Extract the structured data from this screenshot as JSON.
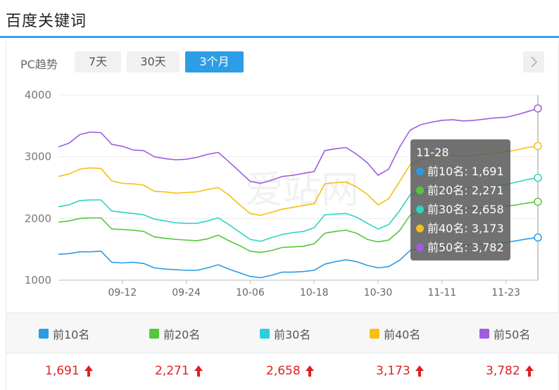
{
  "header": {
    "title": "百度关键词"
  },
  "toolbar": {
    "label": "PC趋势",
    "tabs": [
      {
        "label": "7天",
        "active": false
      },
      {
        "label": "30天",
        "active": false
      },
      {
        "label": "3个月",
        "active": true
      }
    ],
    "next_icon": "chevron-right-icon"
  },
  "watermark": "爱站网",
  "chart_data": {
    "type": "line",
    "ylim": [
      1000,
      4000
    ],
    "yticks": [
      "1000",
      "2000",
      "3000",
      "4000"
    ],
    "xticks": [
      "09-12",
      "09-24",
      "10-06",
      "10-18",
      "10-30",
      "11-11",
      "11-23"
    ],
    "x_range_days": [
      0,
      90
    ],
    "xtick_days": [
      12,
      24,
      36,
      48,
      60,
      72,
      84
    ],
    "grid": true,
    "series": [
      {
        "name": "前10名",
        "color": "#2b9be3",
        "points": [
          [
            0,
            1420
          ],
          [
            2,
            1430
          ],
          [
            4,
            1460
          ],
          [
            6,
            1460
          ],
          [
            8,
            1470
          ],
          [
            10,
            1290
          ],
          [
            12,
            1280
          ],
          [
            14,
            1290
          ],
          [
            16,
            1270
          ],
          [
            18,
            1200
          ],
          [
            20,
            1180
          ],
          [
            22,
            1170
          ],
          [
            24,
            1160
          ],
          [
            26,
            1160
          ],
          [
            28,
            1200
          ],
          [
            30,
            1250
          ],
          [
            32,
            1180
          ],
          [
            34,
            1120
          ],
          [
            36,
            1060
          ],
          [
            38,
            1040
          ],
          [
            40,
            1080
          ],
          [
            42,
            1130
          ],
          [
            44,
            1130
          ],
          [
            46,
            1140
          ],
          [
            48,
            1160
          ],
          [
            50,
            1260
          ],
          [
            52,
            1300
          ],
          [
            54,
            1330
          ],
          [
            56,
            1300
          ],
          [
            58,
            1240
          ],
          [
            60,
            1200
          ],
          [
            62,
            1220
          ],
          [
            64,
            1320
          ],
          [
            66,
            1480
          ],
          [
            68,
            1520
          ],
          [
            70,
            1540
          ],
          [
            72,
            1560
          ],
          [
            74,
            1580
          ],
          [
            76,
            1570
          ],
          [
            78,
            1580
          ],
          [
            80,
            1590
          ],
          [
            82,
            1600
          ],
          [
            84,
            1610
          ],
          [
            86,
            1640
          ],
          [
            88,
            1670
          ],
          [
            90,
            1691
          ]
        ]
      },
      {
        "name": "前20名",
        "color": "#54c73a",
        "points": [
          [
            0,
            1940
          ],
          [
            2,
            1960
          ],
          [
            4,
            2000
          ],
          [
            6,
            2010
          ],
          [
            8,
            2010
          ],
          [
            10,
            1830
          ],
          [
            12,
            1820
          ],
          [
            14,
            1810
          ],
          [
            16,
            1790
          ],
          [
            18,
            1700
          ],
          [
            20,
            1680
          ],
          [
            22,
            1660
          ],
          [
            24,
            1650
          ],
          [
            26,
            1640
          ],
          [
            28,
            1670
          ],
          [
            30,
            1730
          ],
          [
            32,
            1640
          ],
          [
            34,
            1560
          ],
          [
            36,
            1470
          ],
          [
            38,
            1450
          ],
          [
            40,
            1480
          ],
          [
            42,
            1530
          ],
          [
            44,
            1540
          ],
          [
            46,
            1550
          ],
          [
            48,
            1590
          ],
          [
            50,
            1760
          ],
          [
            52,
            1790
          ],
          [
            54,
            1810
          ],
          [
            56,
            1760
          ],
          [
            58,
            1660
          ],
          [
            60,
            1620
          ],
          [
            62,
            1650
          ],
          [
            64,
            1800
          ],
          [
            66,
            2050
          ],
          [
            68,
            2120
          ],
          [
            70,
            2150
          ],
          [
            72,
            2170
          ],
          [
            74,
            2180
          ],
          [
            76,
            2160
          ],
          [
            78,
            2170
          ],
          [
            80,
            2180
          ],
          [
            82,
            2190
          ],
          [
            84,
            2200
          ],
          [
            86,
            2220
          ],
          [
            88,
            2250
          ],
          [
            90,
            2271
          ]
        ]
      },
      {
        "name": "前30名",
        "color": "#2ed3c1",
        "points": [
          [
            0,
            2190
          ],
          [
            2,
            2220
          ],
          [
            4,
            2290
          ],
          [
            6,
            2300
          ],
          [
            8,
            2300
          ],
          [
            10,
            2120
          ],
          [
            12,
            2100
          ],
          [
            14,
            2080
          ],
          [
            16,
            2060
          ],
          [
            18,
            1990
          ],
          [
            20,
            1960
          ],
          [
            22,
            1930
          ],
          [
            24,
            1920
          ],
          [
            26,
            1920
          ],
          [
            28,
            1960
          ],
          [
            30,
            2010
          ],
          [
            32,
            1900
          ],
          [
            34,
            1780
          ],
          [
            36,
            1660
          ],
          [
            38,
            1630
          ],
          [
            40,
            1690
          ],
          [
            42,
            1740
          ],
          [
            44,
            1770
          ],
          [
            46,
            1790
          ],
          [
            48,
            1850
          ],
          [
            50,
            2060
          ],
          [
            52,
            2070
          ],
          [
            54,
            2080
          ],
          [
            56,
            2020
          ],
          [
            58,
            1920
          ],
          [
            60,
            1830
          ],
          [
            62,
            1900
          ],
          [
            64,
            2120
          ],
          [
            66,
            2380
          ],
          [
            68,
            2450
          ],
          [
            70,
            2480
          ],
          [
            72,
            2500
          ],
          [
            74,
            2510
          ],
          [
            76,
            2490
          ],
          [
            78,
            2500
          ],
          [
            80,
            2510
          ],
          [
            82,
            2530
          ],
          [
            84,
            2550
          ],
          [
            86,
            2590
          ],
          [
            88,
            2630
          ],
          [
            90,
            2658
          ]
        ]
      },
      {
        "name": "前40名",
        "color": "#f5c011",
        "points": [
          [
            0,
            2680
          ],
          [
            2,
            2720
          ],
          [
            4,
            2800
          ],
          [
            6,
            2820
          ],
          [
            8,
            2810
          ],
          [
            10,
            2610
          ],
          [
            12,
            2570
          ],
          [
            14,
            2560
          ],
          [
            16,
            2540
          ],
          [
            18,
            2440
          ],
          [
            20,
            2430
          ],
          [
            22,
            2410
          ],
          [
            24,
            2420
          ],
          [
            26,
            2430
          ],
          [
            28,
            2470
          ],
          [
            30,
            2500
          ],
          [
            32,
            2380
          ],
          [
            34,
            2220
          ],
          [
            36,
            2080
          ],
          [
            38,
            2050
          ],
          [
            40,
            2100
          ],
          [
            42,
            2150
          ],
          [
            44,
            2180
          ],
          [
            46,
            2210
          ],
          [
            48,
            2240
          ],
          [
            50,
            2560
          ],
          [
            52,
            2580
          ],
          [
            54,
            2590
          ],
          [
            56,
            2510
          ],
          [
            58,
            2390
          ],
          [
            60,
            2220
          ],
          [
            62,
            2320
          ],
          [
            64,
            2590
          ],
          [
            66,
            2870
          ],
          [
            68,
            2950
          ],
          [
            70,
            2990
          ],
          [
            72,
            3010
          ],
          [
            74,
            3030
          ],
          [
            76,
            3010
          ],
          [
            78,
            3020
          ],
          [
            80,
            3040
          ],
          [
            82,
            3060
          ],
          [
            84,
            3080
          ],
          [
            86,
            3110
          ],
          [
            88,
            3150
          ],
          [
            90,
            3173
          ]
        ]
      },
      {
        "name": "前50名",
        "color": "#a05be0",
        "points": [
          [
            0,
            3160
          ],
          [
            2,
            3220
          ],
          [
            4,
            3360
          ],
          [
            6,
            3400
          ],
          [
            8,
            3390
          ],
          [
            10,
            3200
          ],
          [
            12,
            3170
          ],
          [
            14,
            3110
          ],
          [
            16,
            3100
          ],
          [
            18,
            3000
          ],
          [
            20,
            2970
          ],
          [
            22,
            2950
          ],
          [
            24,
            2960
          ],
          [
            26,
            2990
          ],
          [
            28,
            3040
          ],
          [
            30,
            3070
          ],
          [
            32,
            2920
          ],
          [
            34,
            2760
          ],
          [
            36,
            2600
          ],
          [
            38,
            2570
          ],
          [
            40,
            2620
          ],
          [
            42,
            2680
          ],
          [
            44,
            2700
          ],
          [
            46,
            2730
          ],
          [
            48,
            2760
          ],
          [
            50,
            3100
          ],
          [
            52,
            3130
          ],
          [
            54,
            3150
          ],
          [
            56,
            3040
          ],
          [
            58,
            2900
          ],
          [
            60,
            2700
          ],
          [
            62,
            2800
          ],
          [
            64,
            3150
          ],
          [
            66,
            3430
          ],
          [
            68,
            3520
          ],
          [
            70,
            3560
          ],
          [
            72,
            3590
          ],
          [
            74,
            3600
          ],
          [
            76,
            3580
          ],
          [
            78,
            3590
          ],
          [
            80,
            3610
          ],
          [
            82,
            3630
          ],
          [
            84,
            3640
          ],
          [
            86,
            3680
          ],
          [
            88,
            3730
          ],
          [
            90,
            3782
          ]
        ]
      }
    ],
    "tooltip": {
      "date": "11-28",
      "rows": [
        {
          "label": "前10名: 1,691",
          "color": "#2b9be3"
        },
        {
          "label": "前20名: 2,271",
          "color": "#54c73a"
        },
        {
          "label": "前30名: 2,658",
          "color": "#2ed3c1"
        },
        {
          "label": "前40名: 3,173",
          "color": "#f5c011"
        },
        {
          "label": "前50名: 3,782",
          "color": "#a05be0"
        }
      ]
    }
  },
  "legend": [
    {
      "label": "前10名",
      "color": "#2b9be3"
    },
    {
      "label": "前20名",
      "color": "#54c73a"
    },
    {
      "label": "前30名",
      "color": "#2ed3c1"
    },
    {
      "label": "前40名",
      "color": "#f5c011"
    },
    {
      "label": "前50名",
      "color": "#a05be0"
    }
  ],
  "values": [
    {
      "value": "1,691",
      "trend": "up-arrow-icon"
    },
    {
      "value": "2,271",
      "trend": "up-arrow-icon"
    },
    {
      "value": "2,658",
      "trend": "up-arrow-icon"
    },
    {
      "value": "3,173",
      "trend": "up-arrow-icon"
    },
    {
      "value": "3,782",
      "trend": "up-arrow-icon"
    }
  ]
}
